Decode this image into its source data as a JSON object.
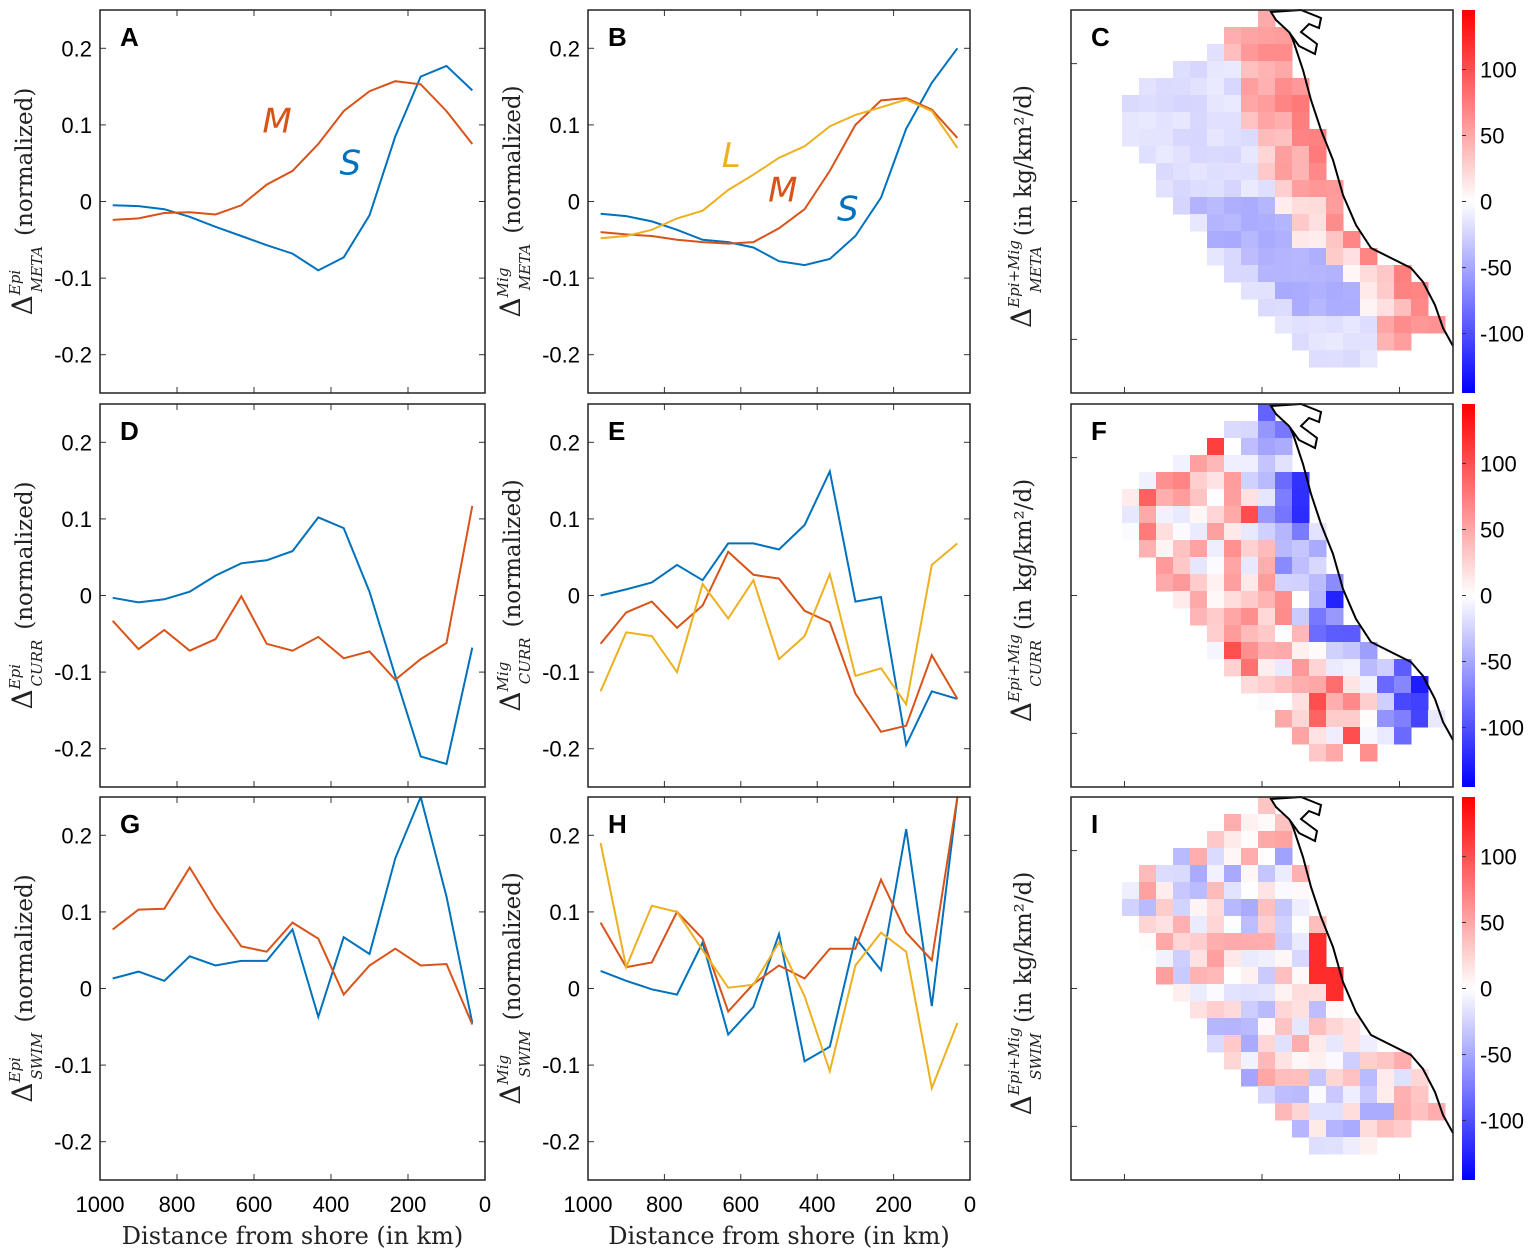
{
  "colors": {
    "S": "#0072BD",
    "M": "#D95319",
    "L": "#EDB120",
    "cmap_neg": "#0000FF",
    "cmap_pos": "#FF0000"
  },
  "xlabel": "Distance from shore (in km)",
  "ylabel_suffix": "(normalized)",
  "map_ylabel_suffix": "(in kg/km²/d)",
  "colorbar": {
    "ticks": [
      100,
      50,
      0,
      -50,
      -100
    ],
    "range": [
      -145,
      145
    ]
  },
  "chart_data": [
    {
      "panel": "A",
      "type": "line",
      "ylabel": {
        "sym": "Δ",
        "sup": "Epi",
        "sub": "META"
      },
      "xlim": [
        1000,
        0
      ],
      "ylim": [
        -0.25,
        0.25
      ],
      "xticks": [
        1000,
        800,
        600,
        400,
        200,
        0
      ],
      "yticks": [
        0.2,
        0.1,
        0,
        -0.1,
        -0.2
      ],
      "x": [
        967,
        900,
        833,
        767,
        700,
        633,
        567,
        500,
        433,
        367,
        300,
        233,
        167,
        100,
        33
      ],
      "series": [
        {
          "name": "S",
          "color_key": "S",
          "values": [
            -0.005,
            -0.006,
            -0.01,
            -0.02,
            -0.033,
            -0.045,
            -0.057,
            -0.068,
            -0.09,
            -0.073,
            -0.018,
            0.085,
            0.163,
            0.177,
            0.145
          ]
        },
        {
          "name": "M",
          "color_key": "M",
          "values": [
            -0.024,
            -0.022,
            -0.015,
            -0.014,
            -0.017,
            -0.005,
            0.022,
            0.04,
            0.075,
            0.118,
            0.144,
            0.157,
            0.153,
            0.118,
            0.075
          ]
        }
      ],
      "annotations": [
        {
          "text": "M",
          "color_key": "M",
          "x": 540,
          "y": 0.09
        },
        {
          "text": "S",
          "color_key": "S",
          "x": 350,
          "y": 0.035
        }
      ]
    },
    {
      "panel": "B",
      "type": "line",
      "ylabel": {
        "sym": "Δ",
        "sup": "Mig",
        "sub": "META"
      },
      "xlim": [
        1000,
        0
      ],
      "ylim": [
        -0.25,
        0.25
      ],
      "xticks": [
        1000,
        800,
        600,
        400,
        200,
        0
      ],
      "yticks": [
        0.2,
        0.1,
        0,
        -0.1,
        -0.2
      ],
      "x": [
        967,
        900,
        833,
        767,
        700,
        633,
        567,
        500,
        433,
        367,
        300,
        233,
        167,
        100,
        33
      ],
      "series": [
        {
          "name": "S",
          "color_key": "S",
          "values": [
            -0.016,
            -0.019,
            -0.026,
            -0.037,
            -0.05,
            -0.053,
            -0.06,
            -0.078,
            -0.083,
            -0.075,
            -0.045,
            0.005,
            0.095,
            0.155,
            0.2
          ]
        },
        {
          "name": "M",
          "color_key": "M",
          "values": [
            -0.04,
            -0.043,
            -0.045,
            -0.05,
            -0.053,
            -0.055,
            -0.053,
            -0.035,
            -0.01,
            0.04,
            0.1,
            0.132,
            0.135,
            0.12,
            0.083
          ]
        },
        {
          "name": "L",
          "color_key": "L",
          "values": [
            -0.048,
            -0.045,
            -0.037,
            -0.022,
            -0.012,
            0.015,
            0.035,
            0.057,
            0.072,
            0.098,
            0.113,
            0.123,
            0.133,
            0.118,
            0.07
          ]
        }
      ],
      "annotations": [
        {
          "text": "L",
          "color_key": "L",
          "x": 625,
          "y": 0.045
        },
        {
          "text": "M",
          "color_key": "M",
          "x": 490,
          "y": 0.0
        },
        {
          "text": "S",
          "color_key": "S",
          "x": 320,
          "y": -0.025
        }
      ]
    },
    {
      "panel": "C",
      "type": "heatmap",
      "ylabel": {
        "sym": "Δ",
        "sup": "Epi+Mig",
        "sub": "META"
      }
    },
    {
      "panel": "D",
      "type": "line",
      "ylabel": {
        "sym": "Δ",
        "sup": "Epi",
        "sub": "CURR"
      },
      "xlim": [
        1000,
        0
      ],
      "ylim": [
        -0.25,
        0.25
      ],
      "xticks": [
        1000,
        800,
        600,
        400,
        200,
        0
      ],
      "yticks": [
        0.2,
        0.1,
        0,
        -0.1,
        -0.2
      ],
      "x": [
        967,
        900,
        833,
        767,
        700,
        633,
        567,
        500,
        433,
        367,
        300,
        233,
        167,
        100,
        33
      ],
      "series": [
        {
          "name": "S",
          "color_key": "S",
          "values": [
            -0.003,
            -0.009,
            -0.005,
            0.005,
            0.026,
            0.042,
            0.046,
            0.058,
            0.102,
            0.088,
            0.005,
            -0.105,
            -0.21,
            -0.22,
            -0.068
          ]
        },
        {
          "name": "M",
          "color_key": "M",
          "values": [
            -0.033,
            -0.07,
            -0.045,
            -0.072,
            -0.057,
            -0.001,
            -0.063,
            -0.072,
            -0.054,
            -0.082,
            -0.073,
            -0.11,
            -0.083,
            -0.062,
            0.117
          ]
        }
      ],
      "annotations": []
    },
    {
      "panel": "E",
      "type": "line",
      "ylabel": {
        "sym": "Δ",
        "sup": "Mig",
        "sub": "CURR"
      },
      "xlim": [
        1000,
        0
      ],
      "ylim": [
        -0.25,
        0.25
      ],
      "xticks": [
        1000,
        800,
        600,
        400,
        200,
        0
      ],
      "yticks": [
        0.2,
        0.1,
        0,
        -0.1,
        -0.2
      ],
      "x": [
        967,
        900,
        833,
        767,
        700,
        633,
        567,
        500,
        433,
        367,
        300,
        233,
        167,
        100,
        33
      ],
      "series": [
        {
          "name": "S",
          "color_key": "S",
          "values": [
            0,
            0.008,
            0.017,
            0.04,
            0.02,
            0.068,
            0.068,
            0.06,
            0.092,
            0.162,
            -0.008,
            -0.002,
            -0.195,
            -0.125,
            -0.135
          ]
        },
        {
          "name": "M",
          "color_key": "M",
          "values": [
            -0.063,
            -0.022,
            -0.008,
            -0.042,
            -0.013,
            0.057,
            0.027,
            0.022,
            -0.02,
            -0.035,
            -0.128,
            -0.178,
            -0.17,
            -0.078,
            -0.135
          ]
        },
        {
          "name": "L",
          "color_key": "L",
          "values": [
            -0.125,
            -0.048,
            -0.053,
            -0.1,
            0.015,
            -0.03,
            0.02,
            -0.083,
            -0.053,
            0.028,
            -0.105,
            -0.095,
            -0.142,
            0.04,
            0.068
          ]
        }
      ],
      "annotations": []
    },
    {
      "panel": "F",
      "type": "heatmap",
      "ylabel": {
        "sym": "Δ",
        "sup": "Epi+Mig",
        "sub": "CURR"
      }
    },
    {
      "panel": "G",
      "type": "line",
      "ylabel": {
        "sym": "Δ",
        "sup": "Epi",
        "sub": "SWIM"
      },
      "xlim": [
        1000,
        0
      ],
      "ylim": [
        -0.25,
        0.25
      ],
      "xticks": [
        1000,
        800,
        600,
        400,
        200,
        0
      ],
      "yticks": [
        0.2,
        0.1,
        0,
        -0.1,
        -0.2
      ],
      "x": [
        967,
        900,
        833,
        767,
        700,
        633,
        567,
        500,
        433,
        367,
        300,
        233,
        167,
        100,
        33
      ],
      "series": [
        {
          "name": "S",
          "color_key": "S",
          "values": [
            0.013,
            0.022,
            0.01,
            0.042,
            0.03,
            0.036,
            0.036,
            0.077,
            -0.037,
            0.067,
            0.045,
            0.17,
            0.25,
            0.12,
            -0.045
          ]
        },
        {
          "name": "M",
          "color_key": "M",
          "values": [
            0.077,
            0.103,
            0.104,
            0.158,
            0.103,
            0.055,
            0.048,
            0.086,
            0.065,
            -0.008,
            0.03,
            0.052,
            0.03,
            0.032,
            -0.047
          ]
        }
      ],
      "annotations": []
    },
    {
      "panel": "H",
      "type": "line",
      "ylabel": {
        "sym": "Δ",
        "sup": "Mig",
        "sub": "SWIM"
      },
      "xlim": [
        1000,
        0
      ],
      "ylim": [
        -0.25,
        0.25
      ],
      "xticks": [
        1000,
        800,
        600,
        400,
        200,
        0
      ],
      "yticks": [
        0.2,
        0.1,
        0,
        -0.1,
        -0.2
      ],
      "x": [
        967,
        900,
        833,
        767,
        700,
        633,
        567,
        500,
        433,
        367,
        300,
        233,
        167,
        100,
        33
      ],
      "series": [
        {
          "name": "S",
          "color_key": "S",
          "values": [
            0.023,
            0.01,
            -0.001,
            -0.008,
            0.06,
            -0.06,
            -0.024,
            0.071,
            -0.095,
            -0.076,
            0.066,
            0.024,
            0.208,
            -0.023,
            0.25
          ]
        },
        {
          "name": "M",
          "color_key": "M",
          "values": [
            0.086,
            0.028,
            0.034,
            0.1,
            0.065,
            -0.03,
            0.006,
            0.03,
            0.013,
            0.052,
            0.052,
            0.142,
            0.073,
            0.037,
            0.25
          ]
        },
        {
          "name": "L",
          "color_key": "L",
          "values": [
            0.19,
            0.028,
            0.108,
            0.1,
            0.05,
            0.001,
            0.005,
            0.06,
            -0.01,
            -0.108,
            0.03,
            0.073,
            0.048,
            -0.13,
            -0.045
          ]
        }
      ],
      "annotations": []
    },
    {
      "panel": "I",
      "type": "heatmap",
      "ylabel": {
        "sym": "Δ",
        "sup": "Epi+Mig",
        "sub": "SWIM"
      }
    }
  ]
}
